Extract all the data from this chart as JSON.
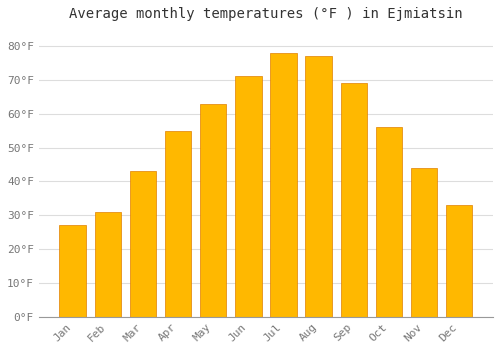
{
  "title": "Average monthly temperatures (°F ) in Ejmiatsin",
  "months": [
    "Jan",
    "Feb",
    "Mar",
    "Apr",
    "May",
    "Jun",
    "Jul",
    "Aug",
    "Sep",
    "Oct",
    "Nov",
    "Dec"
  ],
  "values": [
    27,
    31,
    43,
    55,
    63,
    71,
    78,
    77,
    69,
    56,
    44,
    33
  ],
  "bar_color": "#FFA500",
  "bar_color_inner": "#FFB800",
  "bar_edge_color": "#E08000",
  "background_color": "#FFFFFF",
  "grid_color": "#DDDDDD",
  "text_color": "#777777",
  "ylim": [
    0,
    85
  ],
  "yticks": [
    0,
    10,
    20,
    30,
    40,
    50,
    60,
    70,
    80
  ],
  "ylabel_suffix": "°F",
  "title_fontsize": 10,
  "tick_fontsize": 8
}
